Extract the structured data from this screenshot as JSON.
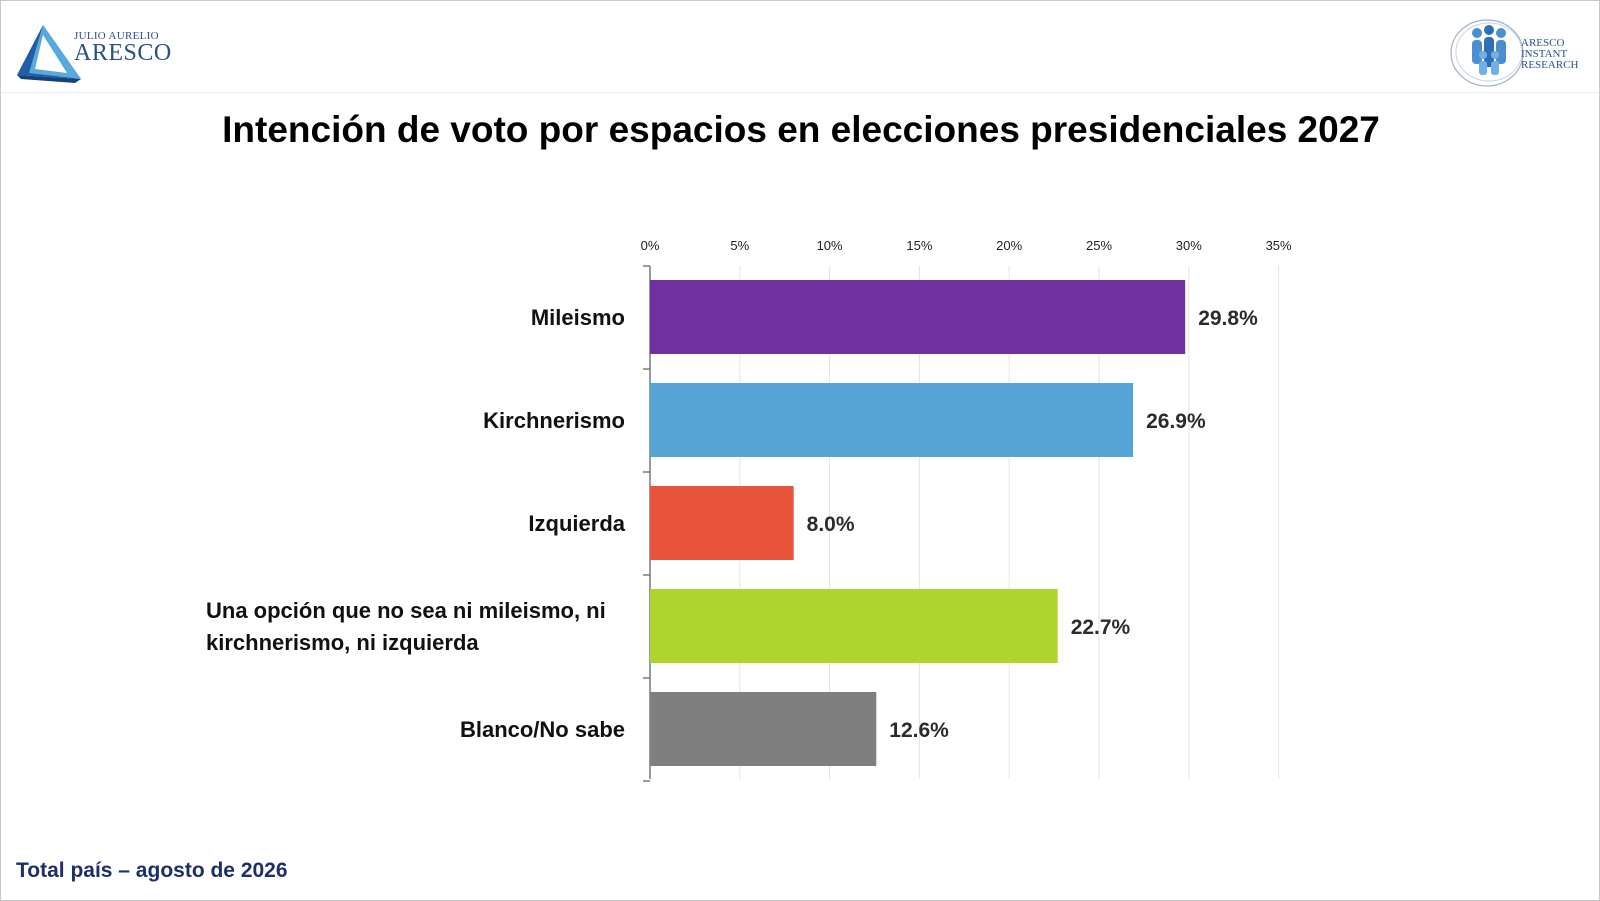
{
  "brand_left": {
    "small": "JULIO AURELIO",
    "big": "ARESCO"
  },
  "brand_right": {
    "line1": "ARESCO",
    "line2": "INSTANT",
    "line3": "RESEARCH"
  },
  "footer": "Total país – agosto de 2026",
  "chart_data": {
    "type": "bar",
    "orientation": "horizontal",
    "title": "Intención de voto por espacios en elecciones presidenciales 2027",
    "xlabel": "",
    "ylabel": "",
    "categories": [
      [
        "Mileismo"
      ],
      [
        "Kirchnerismo"
      ],
      [
        "Izquierda"
      ],
      [
        "Una opción que no sea ni mileismo, ni",
        "kirchnerismo, ni izquierda"
      ],
      [
        "Blanco/No sabe"
      ]
    ],
    "values": [
      29.8,
      26.9,
      8.0,
      22.7,
      12.6
    ],
    "value_labels": [
      "29.8%",
      "26.9%",
      "8.0%",
      "22.7%",
      "12.6%"
    ],
    "colors": [
      "#7030a0",
      "#56a4d6",
      "#e8533c",
      "#add42f",
      "#7f7f7f"
    ],
    "xlim": [
      0,
      35
    ],
    "xticks": [
      0,
      5,
      10,
      15,
      20,
      25,
      30,
      35
    ],
    "xtick_labels": [
      "0%",
      "5%",
      "10%",
      "15%",
      "20%",
      "25%",
      "30%",
      "35%"
    ],
    "x_axis_position": "top",
    "grid": true
  }
}
